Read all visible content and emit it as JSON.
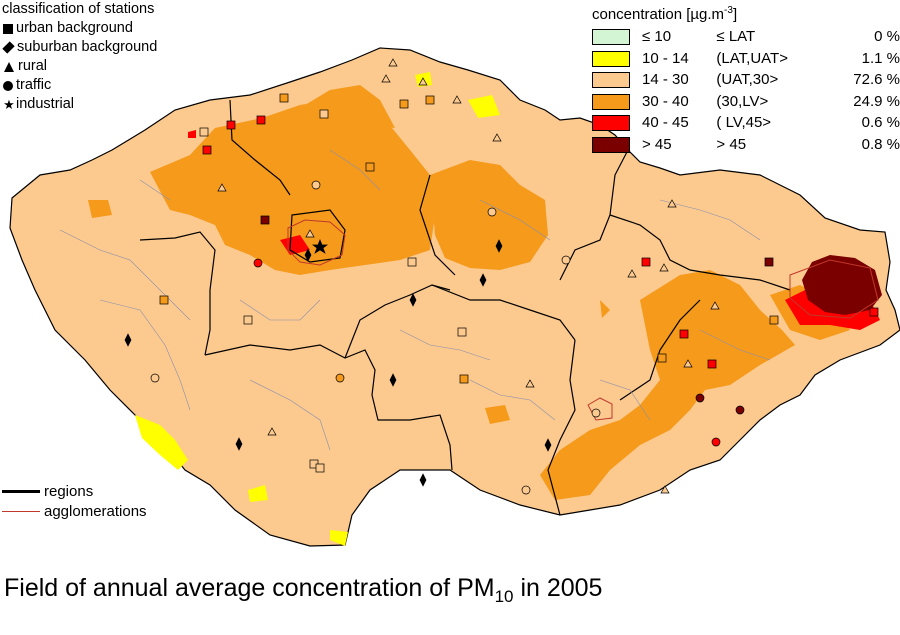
{
  "station_legend": {
    "title": "classification of stations",
    "items": [
      {
        "icon": "square-icon",
        "label": "urban background"
      },
      {
        "icon": "diamond-icon",
        "label": "suburban background"
      },
      {
        "icon": "triangle-icon",
        "label": "rural"
      },
      {
        "icon": "circle-icon",
        "label": "traffic"
      },
      {
        "icon": "star-icon",
        "label": "industrial"
      }
    ]
  },
  "concentration_legend": {
    "title": "concentration [µg.m",
    "title_exp": "-3",
    "title_end": "]",
    "classes": [
      {
        "range": "≤ 10",
        "class": "≤ LAT",
        "percent": "0 %",
        "color": "#d4f5d4"
      },
      {
        "range": "10 - 14",
        "class": "(LAT,UAT>",
        "percent": "1.1 %",
        "color": "#ffff00"
      },
      {
        "range": "14 - 30",
        "class": "(UAT,30>",
        "percent": "72.6 %",
        "color": "#fcc98e"
      },
      {
        "range": "30 - 40",
        "class": "(30,LV>",
        "percent": "24.9 %",
        "color": "#f59a1b"
      },
      {
        "range": "40 - 45",
        "class": "( LV,45>",
        "percent": "0.6 %",
        "color": "#ff0000"
      },
      {
        "range": "> 45",
        "class": "> 45",
        "percent": "0.8 %",
        "color": "#7a0000"
      }
    ]
  },
  "line_legend": {
    "regions": "regions",
    "agglomerations": "agglomerations"
  },
  "caption": {
    "main": "Field of annual average concentration of PM",
    "sub": "10",
    "rest": " in 2005"
  },
  "colors": {
    "background_class": "#fcc98e",
    "border": "#000000",
    "agglomeration": "#c0392b",
    "district": "#8a8fae"
  }
}
